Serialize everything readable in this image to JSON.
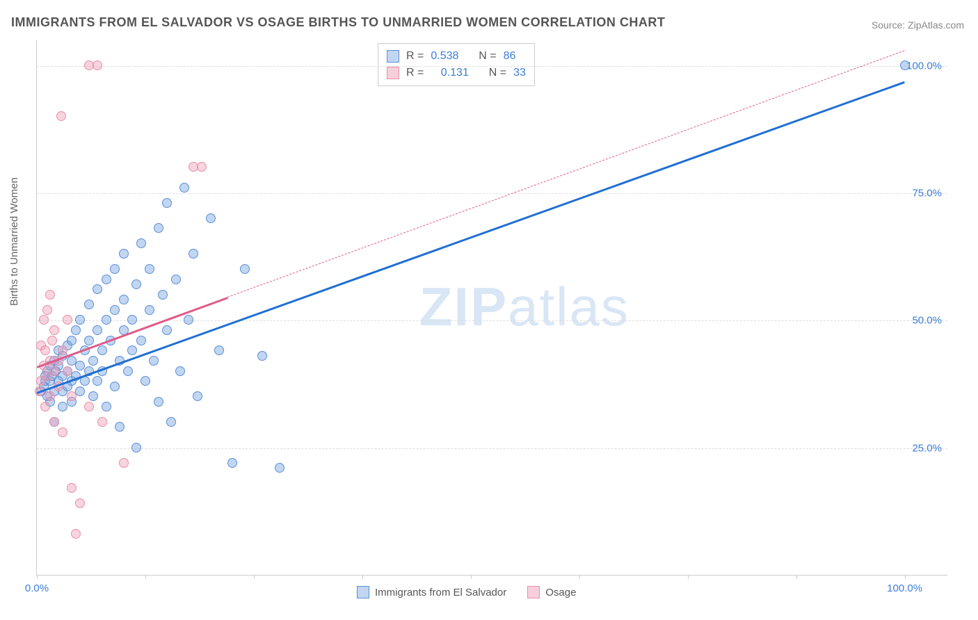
{
  "title": "IMMIGRANTS FROM EL SALVADOR VS OSAGE BIRTHS TO UNMARRIED WOMEN CORRELATION CHART",
  "source_label": "Source:",
  "source_name": "ZipAtlas.com",
  "ylabel": "Births to Unmarried Women",
  "watermark_a": "ZIP",
  "watermark_b": "atlas",
  "chart": {
    "type": "scatter",
    "xlim": [
      0,
      105
    ],
    "ylim": [
      0,
      105
    ],
    "grid_color": "#dddddd",
    "axis_color": "#cccccc",
    "yticks": [
      25,
      50,
      75,
      100
    ],
    "ytick_labels": [
      "25.0%",
      "50.0%",
      "75.0%",
      "100.0%"
    ],
    "xticks": [
      0,
      12.5,
      25,
      37.5,
      50,
      62.5,
      75,
      87.5,
      100
    ],
    "xtick_labels_shown": {
      "0": "0.0%",
      "100": "100.0%"
    },
    "tick_label_color": "#3b7dd8",
    "tick_label_fontsize": 15
  },
  "series": [
    {
      "name": "Immigrants from El Salvador",
      "marker_fill": "rgba(120,165,225,0.45)",
      "marker_stroke": "#5a8fd6",
      "marker_size": 14,
      "R": "0.538",
      "N": "86",
      "trend": {
        "x1": 0,
        "y1": 36,
        "x2": 100,
        "y2": 97,
        "color": "#1f6fd4",
        "width": 2.5,
        "dash_from_x": null
      },
      "points": [
        [
          0.5,
          36
        ],
        [
          0.8,
          37
        ],
        [
          1,
          38
        ],
        [
          1,
          39
        ],
        [
          1.2,
          35
        ],
        [
          1.2,
          40
        ],
        [
          1.5,
          41
        ],
        [
          1.5,
          38
        ],
        [
          1.5,
          34
        ],
        [
          1.8,
          39
        ],
        [
          2,
          36
        ],
        [
          2,
          42
        ],
        [
          2,
          30
        ],
        [
          2.2,
          40
        ],
        [
          2.5,
          38
        ],
        [
          2.5,
          44
        ],
        [
          2.5,
          41
        ],
        [
          3,
          36
        ],
        [
          3,
          39
        ],
        [
          3,
          43
        ],
        [
          3,
          33
        ],
        [
          3.5,
          40
        ],
        [
          3.5,
          45
        ],
        [
          3.5,
          37
        ],
        [
          4,
          38
        ],
        [
          4,
          42
        ],
        [
          4,
          46
        ],
        [
          4,
          34
        ],
        [
          4.5,
          39
        ],
        [
          4.5,
          48
        ],
        [
          5,
          41
        ],
        [
          5,
          36
        ],
        [
          5,
          50
        ],
        [
          5.5,
          44
        ],
        [
          5.5,
          38
        ],
        [
          6,
          46
        ],
        [
          6,
          40
        ],
        [
          6,
          53
        ],
        [
          6.5,
          42
        ],
        [
          6.5,
          35
        ],
        [
          7,
          48
        ],
        [
          7,
          38
        ],
        [
          7,
          56
        ],
        [
          7.5,
          40
        ],
        [
          7.5,
          44
        ],
        [
          8,
          50
        ],
        [
          8,
          33
        ],
        [
          8,
          58
        ],
        [
          8.5,
          46
        ],
        [
          9,
          37
        ],
        [
          9,
          52
        ],
        [
          9,
          60
        ],
        [
          9.5,
          42
        ],
        [
          9.5,
          29
        ],
        [
          10,
          48
        ],
        [
          10,
          54
        ],
        [
          10,
          63
        ],
        [
          10.5,
          40
        ],
        [
          11,
          50
        ],
        [
          11,
          44
        ],
        [
          11.5,
          57
        ],
        [
          11.5,
          25
        ],
        [
          12,
          46
        ],
        [
          12,
          65
        ],
        [
          12.5,
          38
        ],
        [
          13,
          52
        ],
        [
          13,
          60
        ],
        [
          13.5,
          42
        ],
        [
          14,
          68
        ],
        [
          14,
          34
        ],
        [
          14.5,
          55
        ],
        [
          15,
          48
        ],
        [
          15,
          73
        ],
        [
          15.5,
          30
        ],
        [
          16,
          58
        ],
        [
          16.5,
          40
        ],
        [
          17,
          76
        ],
        [
          17.5,
          50
        ],
        [
          18,
          63
        ],
        [
          18.5,
          35
        ],
        [
          20,
          70
        ],
        [
          21,
          44
        ],
        [
          22.5,
          22
        ],
        [
          24,
          60
        ],
        [
          26,
          43
        ],
        [
          28,
          21
        ],
        [
          100,
          100
        ]
      ]
    },
    {
      "name": "Osage",
      "marker_fill": "rgba(240,160,185,0.45)",
      "marker_stroke": "#e68fa8",
      "marker_size": 14,
      "R": "0.131",
      "N": "33",
      "trend": {
        "x1": 0,
        "y1": 41,
        "x2": 100,
        "y2": 103,
        "color": "#e05a88",
        "width": 2.5,
        "dash_from_x": 22
      },
      "points": [
        [
          0.3,
          36
        ],
        [
          0.5,
          38
        ],
        [
          0.5,
          45
        ],
        [
          0.8,
          41
        ],
        [
          0.8,
          50
        ],
        [
          1,
          33
        ],
        [
          1,
          44
        ],
        [
          1.2,
          39
        ],
        [
          1.2,
          52
        ],
        [
          1.5,
          42
        ],
        [
          1.5,
          35
        ],
        [
          1.5,
          55
        ],
        [
          1.8,
          46
        ],
        [
          2,
          40
        ],
        [
          2,
          30
        ],
        [
          2,
          48
        ],
        [
          2.5,
          42
        ],
        [
          2.5,
          37
        ],
        [
          3,
          44
        ],
        [
          3,
          28
        ],
        [
          3.5,
          40
        ],
        [
          3.5,
          50
        ],
        [
          4,
          35
        ],
        [
          4,
          17
        ],
        [
          4.5,
          8
        ],
        [
          5,
          14
        ],
        [
          6,
          33
        ],
        [
          6,
          100
        ],
        [
          7,
          100
        ],
        [
          7.5,
          30
        ],
        [
          10,
          22
        ],
        [
          18,
          80
        ],
        [
          19,
          80
        ]
      ]
    },
    {
      "name": "_outlier_pink",
      "marker_fill": "rgba(240,160,185,0.45)",
      "marker_stroke": "#e68fa8",
      "marker_size": 14,
      "points": [
        [
          2.8,
          90
        ]
      ]
    }
  ],
  "legend_top": {
    "rows": [
      {
        "swatch_fill": "rgba(120,165,225,0.45)",
        "swatch_stroke": "#5a8fd6",
        "r_label": "R =",
        "r_val": "0.538",
        "n_label": "N =",
        "n_val": "86"
      },
      {
        "swatch_fill": "rgba(240,160,185,0.5)",
        "swatch_stroke": "#e68fa8",
        "r_label": "R =",
        "r_val": "0.131",
        "n_label": "N =",
        "n_val": "33"
      }
    ]
  },
  "legend_bottom": {
    "items": [
      {
        "swatch_fill": "rgba(120,165,225,0.45)",
        "swatch_stroke": "#5a8fd6",
        "label": "Immigrants from El Salvador"
      },
      {
        "swatch_fill": "rgba(240,160,185,0.5)",
        "swatch_stroke": "#e68fa8",
        "label": "Osage"
      }
    ]
  }
}
